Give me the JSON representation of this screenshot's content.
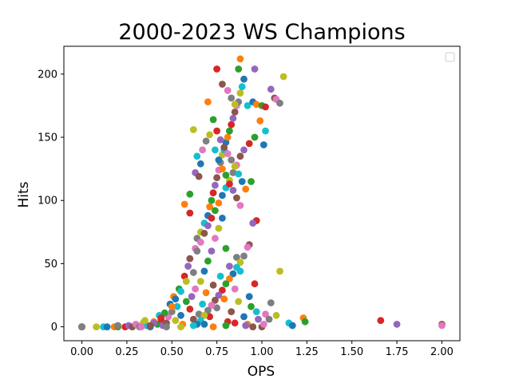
{
  "chart_data": {
    "type": "scatter",
    "title": "2000-2023 WS Champions",
    "xlabel": "OPS",
    "ylabel": "Hits",
    "xlim": [
      -0.1,
      2.1
    ],
    "ylim": [
      -11,
      222
    ],
    "x_ticks": [
      "0.00",
      "0.25",
      "0.50",
      "0.75",
      "1.00",
      "1.25",
      "1.50",
      "1.75",
      "2.00"
    ],
    "x_tick_values": [
      0,
      0.25,
      0.5,
      0.75,
      1.0,
      1.25,
      1.5,
      1.75,
      2.0
    ],
    "y_ticks": [
      "0",
      "50",
      "100",
      "150",
      "200"
    ],
    "y_tick_values": [
      0,
      50,
      100,
      150,
      200
    ],
    "grid": false,
    "legend": {
      "position": "top-right",
      "entries": []
    },
    "colors": [
      "#1f77b4",
      "#ff7f0e",
      "#2ca02c",
      "#d62728",
      "#9467bd",
      "#8c564b",
      "#e377c2",
      "#7f7f7f",
      "#bcbd22",
      "#17becf"
    ],
    "points": [
      [
        0.0,
        0
      ],
      [
        0.0,
        0
      ],
      [
        0.0,
        0
      ],
      [
        0.0,
        0
      ],
      [
        0.0,
        0
      ],
      [
        0.0,
        0
      ],
      [
        0.0,
        0
      ],
      [
        0.0,
        0
      ],
      [
        0.08,
        0
      ],
      [
        0.12,
        0
      ],
      [
        0.14,
        0
      ],
      [
        0.18,
        0
      ],
      [
        0.2,
        0
      ],
      [
        0.24,
        0
      ],
      [
        0.26,
        1
      ],
      [
        0.28,
        0
      ],
      [
        0.3,
        2
      ],
      [
        0.32,
        0
      ],
      [
        0.34,
        3
      ],
      [
        0.36,
        1
      ],
      [
        0.38,
        0
      ],
      [
        0.4,
        4
      ],
      [
        0.42,
        2
      ],
      [
        0.44,
        6
      ],
      [
        0.45,
        1
      ],
      [
        0.47,
        3
      ],
      [
        0.48,
        8
      ],
      [
        0.5,
        12
      ],
      [
        0.52,
        5
      ],
      [
        0.53,
        16
      ],
      [
        0.55,
        9
      ],
      [
        0.56,
        2
      ],
      [
        0.58,
        20
      ],
      [
        0.6,
        14
      ],
      [
        0.61,
        24
      ],
      [
        0.62,
        6
      ],
      [
        0.63,
        30
      ],
      [
        0.65,
        10
      ],
      [
        0.66,
        36
      ],
      [
        0.67,
        18
      ],
      [
        0.68,
        44
      ],
      [
        0.69,
        27
      ],
      [
        0.7,
        52
      ],
      [
        0.71,
        8
      ],
      [
        0.72,
        60
      ],
      [
        0.73,
        33
      ],
      [
        0.74,
        70
      ],
      [
        0.75,
        15
      ],
      [
        0.76,
        78
      ],
      [
        0.77,
        40
      ],
      [
        0.78,
        86
      ],
      [
        0.79,
        22
      ],
      [
        0.8,
        62
      ],
      [
        0.81,
        4
      ],
      [
        0.82,
        48
      ],
      [
        0.83,
        12
      ],
      [
        0.85,
        30
      ],
      [
        0.86,
        55
      ],
      [
        0.87,
        20
      ],
      [
        0.88,
        44
      ],
      [
        0.9,
        8
      ],
      [
        0.92,
        2
      ],
      [
        0.94,
        16
      ],
      [
        0.96,
        34
      ],
      [
        0.98,
        6
      ],
      [
        1.0,
        0
      ],
      [
        1.02,
        10
      ],
      [
        1.05,
        19
      ],
      [
        1.1,
        44
      ],
      [
        1.15,
        3
      ],
      [
        1.17,
        1
      ],
      [
        1.23,
        7
      ],
      [
        1.24,
        4
      ],
      [
        1.66,
        5
      ],
      [
        1.75,
        2
      ],
      [
        2.0,
        2
      ],
      [
        2.0,
        1
      ],
      [
        0.2,
        1
      ],
      [
        0.35,
        5
      ],
      [
        0.43,
        9
      ],
      [
        0.49,
        18
      ],
      [
        0.51,
        24
      ],
      [
        0.54,
        30
      ],
      [
        0.57,
        40
      ],
      [
        0.59,
        48
      ],
      [
        0.6,
        54
      ],
      [
        0.63,
        62
      ],
      [
        0.64,
        70
      ],
      [
        0.66,
        75
      ],
      [
        0.68,
        82
      ],
      [
        0.7,
        88
      ],
      [
        0.71,
        95
      ],
      [
        0.72,
        100
      ],
      [
        0.73,
        106
      ],
      [
        0.74,
        112
      ],
      [
        0.75,
        118
      ],
      [
        0.76,
        124
      ],
      [
        0.77,
        130
      ],
      [
        0.78,
        136
      ],
      [
        0.79,
        140
      ],
      [
        0.8,
        146
      ],
      [
        0.81,
        150
      ],
      [
        0.82,
        155
      ],
      [
        0.83,
        160
      ],
      [
        0.84,
        165
      ],
      [
        0.85,
        170
      ],
      [
        0.86,
        175
      ],
      [
        0.87,
        178
      ],
      [
        0.88,
        185
      ],
      [
        0.89,
        190
      ],
      [
        0.9,
        196
      ],
      [
        0.88,
        212
      ],
      [
        0.87,
        204
      ],
      [
        0.75,
        204
      ],
      [
        0.96,
        204
      ],
      [
        0.78,
        192
      ],
      [
        0.81,
        187
      ],
      [
        0.83,
        181
      ],
      [
        0.85,
        176
      ],
      [
        0.92,
        175
      ],
      [
        0.95,
        178
      ],
      [
        0.97,
        176
      ],
      [
        1.0,
        175
      ],
      [
        1.02,
        174
      ],
      [
        1.05,
        188
      ],
      [
        1.07,
        181
      ],
      [
        1.08,
        180
      ],
      [
        1.1,
        177
      ],
      [
        1.12,
        198
      ],
      [
        1.02,
        155
      ],
      [
        1.01,
        144
      ],
      [
        0.99,
        163
      ],
      [
        0.96,
        150
      ],
      [
        0.93,
        145
      ],
      [
        0.9,
        140
      ],
      [
        0.88,
        135
      ],
      [
        0.86,
        128
      ],
      [
        0.84,
        122
      ],
      [
        0.82,
        116
      ],
      [
        0.8,
        110
      ],
      [
        0.78,
        104
      ],
      [
        0.76,
        98
      ],
      [
        0.74,
        92
      ],
      [
        0.72,
        86
      ],
      [
        0.7,
        80
      ],
      [
        0.68,
        74
      ],
      [
        0.66,
        67
      ],
      [
        0.64,
        60
      ],
      [
        0.62,
        156
      ],
      [
        0.64,
        135
      ],
      [
        0.66,
        129
      ],
      [
        0.7,
        178
      ],
      [
        0.73,
        164
      ],
      [
        0.75,
        155
      ],
      [
        0.77,
        148
      ],
      [
        0.79,
        142
      ],
      [
        0.81,
        137
      ],
      [
        0.83,
        132
      ],
      [
        0.85,
        127
      ],
      [
        0.87,
        121
      ],
      [
        0.89,
        115
      ],
      [
        0.91,
        109
      ],
      [
        0.94,
        115
      ],
      [
        0.97,
        84
      ],
      [
        0.95,
        82
      ],
      [
        0.93,
        65
      ],
      [
        0.92,
        63
      ],
      [
        0.9,
        56
      ],
      [
        0.88,
        51
      ],
      [
        0.86,
        47
      ],
      [
        0.84,
        42
      ],
      [
        0.82,
        38
      ],
      [
        0.8,
        34
      ],
      [
        0.78,
        29
      ],
      [
        0.76,
        25
      ],
      [
        0.74,
        21
      ],
      [
        0.72,
        17
      ],
      [
        0.7,
        13
      ],
      [
        0.68,
        9
      ],
      [
        0.66,
        5
      ],
      [
        0.64,
        2
      ],
      [
        0.57,
        97
      ],
      [
        0.6,
        105
      ],
      [
        0.6,
        90
      ],
      [
        0.63,
        122
      ],
      [
        0.65,
        119
      ],
      [
        0.67,
        140
      ],
      [
        0.69,
        147
      ],
      [
        0.71,
        152
      ],
      [
        0.74,
        140
      ],
      [
        0.76,
        132
      ],
      [
        0.78,
        125
      ],
      [
        0.8,
        120
      ],
      [
        0.82,
        113
      ],
      [
        0.84,
        108
      ],
      [
        0.86,
        102
      ],
      [
        0.88,
        96
      ],
      [
        0.62,
        43
      ],
      [
        0.58,
        36
      ],
      [
        0.55,
        28
      ],
      [
        0.52,
        22
      ],
      [
        0.5,
        16
      ],
      [
        0.46,
        11
      ],
      [
        0.44,
        7
      ],
      [
        0.4,
        3
      ],
      [
        0.38,
        1
      ],
      [
        0.33,
        0
      ],
      [
        0.47,
        0
      ],
      [
        0.55,
        0
      ],
      [
        0.62,
        1
      ],
      [
        0.68,
        2
      ],
      [
        0.73,
        0
      ],
      [
        0.8,
        1
      ],
      [
        0.85,
        3
      ],
      [
        0.91,
        1
      ],
      [
        0.95,
        0
      ],
      [
        1.01,
        2
      ],
      [
        1.04,
        6
      ],
      [
        1.08,
        9
      ],
      [
        0.97,
        12
      ],
      [
        0.93,
        24
      ]
    ]
  }
}
